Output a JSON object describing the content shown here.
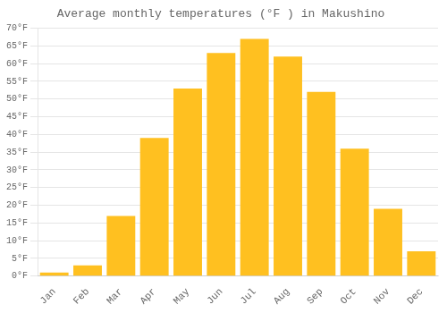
{
  "chart_data": {
    "type": "bar",
    "title": "Average monthly temperatures (°F ) in Makushino",
    "categories": [
      "Jan",
      "Feb",
      "Mar",
      "Apr",
      "May",
      "Jun",
      "Jul",
      "Aug",
      "Sep",
      "Oct",
      "Nov",
      "Dec"
    ],
    "values": [
      1,
      3,
      17,
      39,
      53,
      63,
      67,
      62,
      52,
      36,
      19,
      7
    ],
    "color": "#FFC020",
    "ylim": [
      0,
      70
    ],
    "yticks": [
      {
        "value": 0,
        "label": "0°F"
      },
      {
        "value": 5,
        "label": "5°F"
      },
      {
        "value": 10,
        "label": "10°F"
      },
      {
        "value": 15,
        "label": "15°F"
      },
      {
        "value": 20,
        "label": "20°F"
      },
      {
        "value": 25,
        "label": "25°F"
      },
      {
        "value": 30,
        "label": "30°F"
      },
      {
        "value": 35,
        "label": "35°F"
      },
      {
        "value": 40,
        "label": "40°F"
      },
      {
        "value": 45,
        "label": "45°F"
      },
      {
        "value": 50,
        "label": "50°F"
      },
      {
        "value": 55,
        "label": "55°F"
      },
      {
        "value": 60,
        "label": "60°F"
      },
      {
        "value": 65,
        "label": "65°F"
      },
      {
        "value": 70,
        "label": "70°F"
      }
    ],
    "grid": true
  }
}
